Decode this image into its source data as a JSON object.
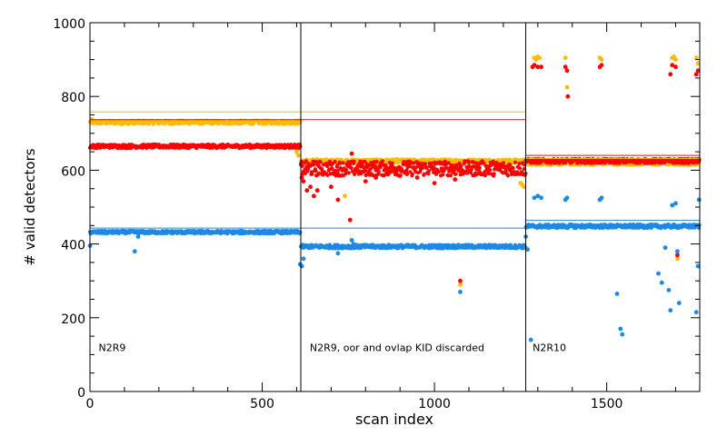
{
  "chart_data": {
    "type": "scatter",
    "xlabel": "scan index",
    "ylabel": "# valid detectors",
    "xlim": [
      0,
      1770
    ],
    "ylim": [
      0,
      1000
    ],
    "x_ticks": [
      0,
      500,
      1000,
      1500
    ],
    "x_tick_labels": [
      "0",
      "500",
      "1000",
      "1500"
    ],
    "y_ticks": [
      0,
      200,
      400,
      600,
      800,
      1000
    ],
    "y_tick_labels": [
      "0",
      "200",
      "400",
      "600",
      "800",
      "1000"
    ],
    "grid": false,
    "dividers": [
      612,
      1265
    ],
    "segment_labels": [
      {
        "x": 25,
        "y": 110,
        "text": "N2R9"
      },
      {
        "x": 638,
        "y": 110,
        "text": "N2R9, oor and ovlap KID discarded"
      },
      {
        "x": 1285,
        "y": 110,
        "text": "N2R10"
      }
    ],
    "colors": {
      "red": "#ff0000",
      "orange": "#ffbb00",
      "blue": "#1e88e5",
      "divider": "#000000"
    },
    "reference_lines": [
      {
        "series": "orange",
        "y": 758,
        "x": [
          0,
          1265
        ]
      },
      {
        "series": "red",
        "y": 737,
        "x": [
          0,
          1265
        ]
      },
      {
        "series": "blue",
        "y": 443,
        "x": [
          0,
          1265
        ]
      },
      {
        "series": "red",
        "y": 640,
        "x": [
          1265,
          1770
        ]
      },
      {
        "series": "orange",
        "y": 632,
        "x": [
          1265,
          1770
        ]
      },
      {
        "series": "blue",
        "y": 464,
        "x": [
          1265,
          1770
        ]
      }
    ],
    "series": [
      {
        "color_key": "orange",
        "segments": [
          {
            "x": [
              0,
              612
            ],
            "base": 730,
            "noise": 5
          },
          {
            "x": [
              612,
              1265
            ],
            "base": 625,
            "noise": 5
          },
          {
            "x": [
              1265,
              1770
            ],
            "base": 620,
            "noise": 6
          }
        ],
        "extra_points": [
          [
            5,
            738
          ],
          [
            600,
            650
          ],
          [
            605,
            640
          ],
          [
            740,
            530
          ],
          [
            1075,
            290
          ],
          [
            1250,
            565
          ],
          [
            1255,
            560
          ],
          [
            1260,
            555
          ],
          [
            1290,
            905
          ],
          [
            1295,
            900
          ],
          [
            1300,
            908
          ],
          [
            1305,
            905
          ],
          [
            1380,
            905
          ],
          [
            1385,
            825
          ],
          [
            1480,
            905
          ],
          [
            1485,
            900
          ],
          [
            1690,
            905
          ],
          [
            1695,
            908
          ],
          [
            1700,
            900
          ],
          [
            1760,
            905
          ],
          [
            1765,
            890
          ],
          [
            1705,
            360
          ]
        ]
      },
      {
        "color_key": "red",
        "segments": [
          {
            "x": [
              0,
              612
            ],
            "base": 665,
            "noise": 5
          },
          {
            "x": [
              612,
              1265
            ],
            "base": 605,
            "noise": 20
          },
          {
            "x": [
              1265,
              1770
            ],
            "base": 625,
            "noise": 6
          }
        ],
        "extra_points": [
          [
            615,
            580
          ],
          [
            620,
            570
          ],
          [
            630,
            545
          ],
          [
            640,
            555
          ],
          [
            650,
            530
          ],
          [
            660,
            545
          ],
          [
            700,
            555
          ],
          [
            720,
            520
          ],
          [
            760,
            645
          ],
          [
            770,
            600
          ],
          [
            800,
            570
          ],
          [
            830,
            580
          ],
          [
            900,
            585
          ],
          [
            920,
            590
          ],
          [
            950,
            580
          ],
          [
            1000,
            565
          ],
          [
            1030,
            620
          ],
          [
            1060,
            575
          ],
          [
            1075,
            300
          ],
          [
            755,
            465
          ],
          [
            1285,
            880
          ],
          [
            1290,
            885
          ],
          [
            1300,
            880
          ],
          [
            1310,
            880
          ],
          [
            1380,
            880
          ],
          [
            1385,
            870
          ],
          [
            1387,
            800
          ],
          [
            1480,
            880
          ],
          [
            1485,
            885
          ],
          [
            1690,
            885
          ],
          [
            1685,
            860
          ],
          [
            1700,
            880
          ],
          [
            1705,
            370
          ],
          [
            1760,
            860
          ],
          [
            1765,
            870
          ]
        ]
      },
      {
        "color_key": "blue",
        "segments": [
          {
            "x": [
              0,
              612
            ],
            "base": 432,
            "noise": 4
          },
          {
            "x": [
              612,
              1265
            ],
            "base": 393,
            "noise": 5
          },
          {
            "x": [
              1265,
              1770
            ],
            "base": 448,
            "noise": 5
          }
        ],
        "extra_points": [
          [
            0,
            395
          ],
          [
            130,
            380
          ],
          [
            140,
            420
          ],
          [
            610,
            345
          ],
          [
            615,
            340
          ],
          [
            620,
            360
          ],
          [
            720,
            375
          ],
          [
            760,
            410
          ],
          [
            765,
            400
          ],
          [
            1075,
            270
          ],
          [
            1265,
            420
          ],
          [
            1270,
            385
          ],
          [
            1280,
            140
          ],
          [
            1290,
            525
          ],
          [
            1300,
            530
          ],
          [
            1310,
            525
          ],
          [
            1380,
            520
          ],
          [
            1385,
            525
          ],
          [
            1480,
            520
          ],
          [
            1485,
            525
          ],
          [
            1530,
            265
          ],
          [
            1540,
            170
          ],
          [
            1545,
            155
          ],
          [
            1650,
            320
          ],
          [
            1660,
            295
          ],
          [
            1670,
            390
          ],
          [
            1680,
            275
          ],
          [
            1685,
            220
          ],
          [
            1690,
            505
          ],
          [
            1700,
            510
          ],
          [
            1705,
            380
          ],
          [
            1710,
            240
          ],
          [
            1760,
            215
          ],
          [
            1765,
            340
          ],
          [
            1768,
            520
          ]
        ]
      }
    ]
  }
}
